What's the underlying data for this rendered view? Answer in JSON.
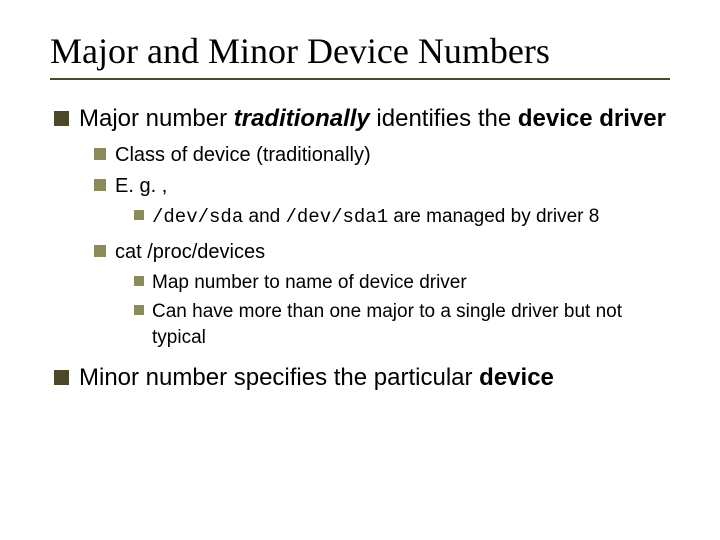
{
  "slide": {
    "title": "Major and Minor Device Numbers",
    "title_font": "Times New Roman",
    "title_fontsize": 36,
    "underline_color": "#4a4a2a",
    "bullet_color_l1": "#4a4a2a",
    "bullet_color_sub": "#8a8a5a",
    "background_color": "#ffffff",
    "text_color": "#000000",
    "body_font": "Arial",
    "body_fontsize_l1": 24,
    "body_fontsize_l2": 20,
    "body_fontsize_l3": 19,
    "b1": {
      "prefix": "Major number ",
      "emph": "traditionally",
      "mid": " identifies the ",
      "bold1": "device driver"
    },
    "b1_1": "Class of device (traditionally)",
    "b1_2": "E. g. ,",
    "b1_2_1": {
      "m1": "/dev/sda",
      "t1": " and ",
      "m2": "/dev/sda1",
      "t2": " are managed by driver 8"
    },
    "b1_3": "cat /proc/devices",
    "b1_3_1": "Map number to name of device driver",
    "b1_3_2": "Can have more than one major to a single driver but not typical",
    "b2": {
      "prefix": "Minor number specifies the particular ",
      "bold1": "device"
    }
  }
}
